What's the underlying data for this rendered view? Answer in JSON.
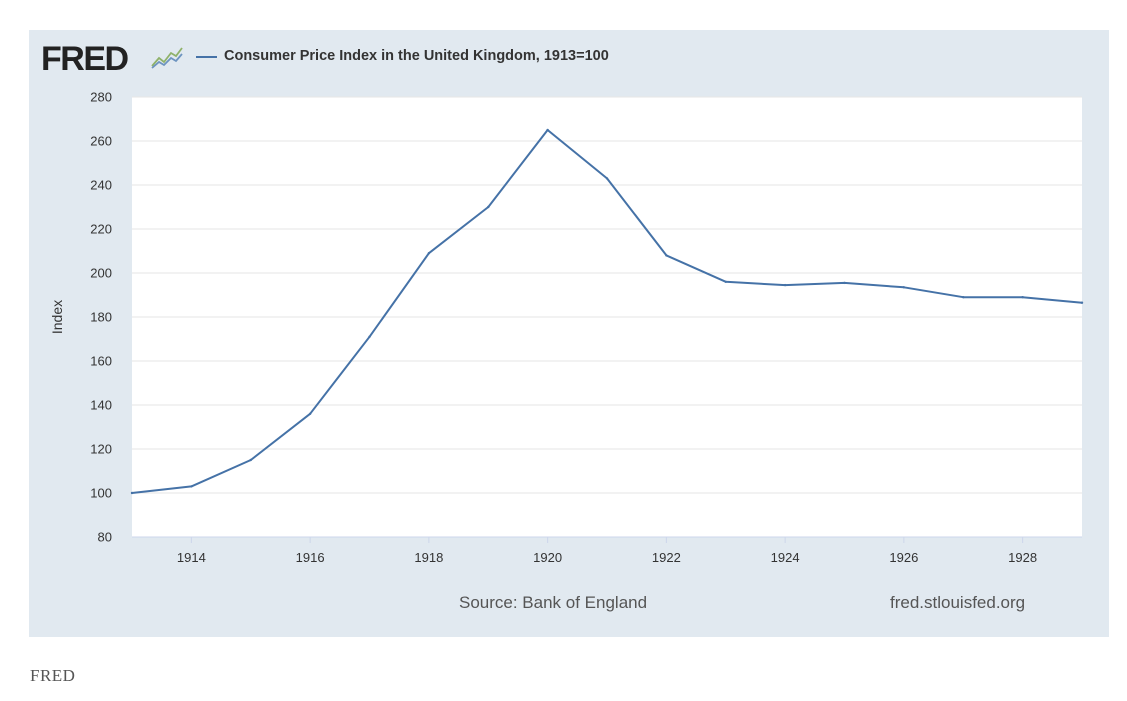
{
  "header": {
    "logo_text": "FRED",
    "logo_icon": "line-graph-icon",
    "legend_label": "Consumer Price Index in the United Kingdom, 1913=100",
    "series_color": "#4572a7"
  },
  "footer": {
    "source": "Source: Bank of England",
    "site": "fred.stlouisfed.org"
  },
  "caption": "FRED",
  "chart_data": {
    "type": "line",
    "title": "Consumer Price Index in the United Kingdom, 1913=100",
    "xlabel": "",
    "ylabel": "Index",
    "x": [
      1913,
      1914,
      1915,
      1916,
      1917,
      1918,
      1919,
      1920,
      1921,
      1922,
      1923,
      1924,
      1925,
      1926,
      1927,
      1928,
      1929
    ],
    "series": [
      {
        "name": "Consumer Price Index in the United Kingdom, 1913=100",
        "values": [
          100,
          103,
          115,
          136,
          171,
          209,
          230,
          265,
          243,
          208,
          196,
          194.5,
          195.5,
          193.5,
          189,
          189,
          186.5
        ]
      }
    ],
    "xlim": [
      1913,
      1929
    ],
    "ylim": [
      80,
      280
    ],
    "x_ticks": [
      "1914",
      "1916",
      "1918",
      "1920",
      "1922",
      "1924",
      "1926",
      "1928"
    ],
    "y_ticks": [
      "80",
      "100",
      "120",
      "140",
      "160",
      "180",
      "200",
      "220",
      "240",
      "260",
      "280"
    ],
    "grid": true,
    "legend": "top-left"
  }
}
